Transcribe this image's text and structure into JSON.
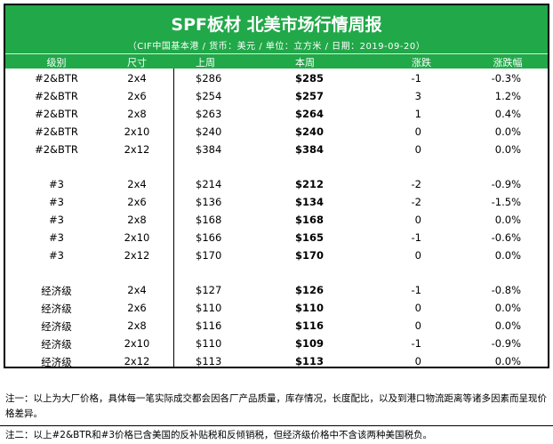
{
  "header": {
    "title": "SPF板材 北美市场行情周报",
    "subtitle": "（CIF中国基本港 / 货币：美元 / 单位：立方米 / 日期：2019-09-20）",
    "columns": [
      "级别",
      "尺寸",
      "上周",
      "本周",
      "涨跌",
      "涨跌幅"
    ]
  },
  "groups": [
    {
      "rows": [
        [
          "#2&BTR",
          "2x4",
          "$286",
          "$285",
          "-1",
          "-0.3%"
        ],
        [
          "#2&BTR",
          "2x6",
          "$254",
          "$257",
          "3",
          "1.2%"
        ],
        [
          "#2&BTR",
          "2x8",
          "$263",
          "$264",
          "1",
          "0.4%"
        ],
        [
          "#2&BTR",
          "2x10",
          "$240",
          "$240",
          "0",
          "0.0%"
        ],
        [
          "#2&BTR",
          "2x12",
          "$384",
          "$384",
          "0",
          "0.0%"
        ]
      ]
    },
    {
      "rows": [
        [
          "#3",
          "2x4",
          "$214",
          "$212",
          "-2",
          "-0.9%"
        ],
        [
          "#3",
          "2x6",
          "$136",
          "$134",
          "-2",
          "-1.5%"
        ],
        [
          "#3",
          "2x8",
          "$168",
          "$168",
          "0",
          "0.0%"
        ],
        [
          "#3",
          "2x10",
          "$166",
          "$165",
          "-1",
          "-0.6%"
        ],
        [
          "#3",
          "2x12",
          "$170",
          "$170",
          "0",
          "0.0%"
        ]
      ]
    },
    {
      "rows": [
        [
          "经济级",
          "2x4",
          "$127",
          "$126",
          "-1",
          "-0.8%"
        ],
        [
          "经济级",
          "2x6",
          "$110",
          "$110",
          "0",
          "0.0%"
        ],
        [
          "经济级",
          "2x8",
          "$116",
          "$116",
          "0",
          "0.0%"
        ],
        [
          "经济级",
          "2x10",
          "$110",
          "$109",
          "-1",
          "-0.9%"
        ],
        [
          "经济级",
          "2x12",
          "$113",
          "$113",
          "0",
          "0.0%"
        ]
      ]
    }
  ],
  "notes": {
    "note1": "注一：以上为大厂价格，具体每一笔实际成交都会因各厂产品质量，库存情况，长度配比，以及到港口物流距离等诸多因素而呈现价格差异。",
    "note2": "注二：以上#2&BTR和#3价格已含美国的反补贴税和反倾销税，但经济级价格中不含该两种美国税负。"
  },
  "colors": {
    "banner": "#21a849",
    "text": "#000000"
  }
}
